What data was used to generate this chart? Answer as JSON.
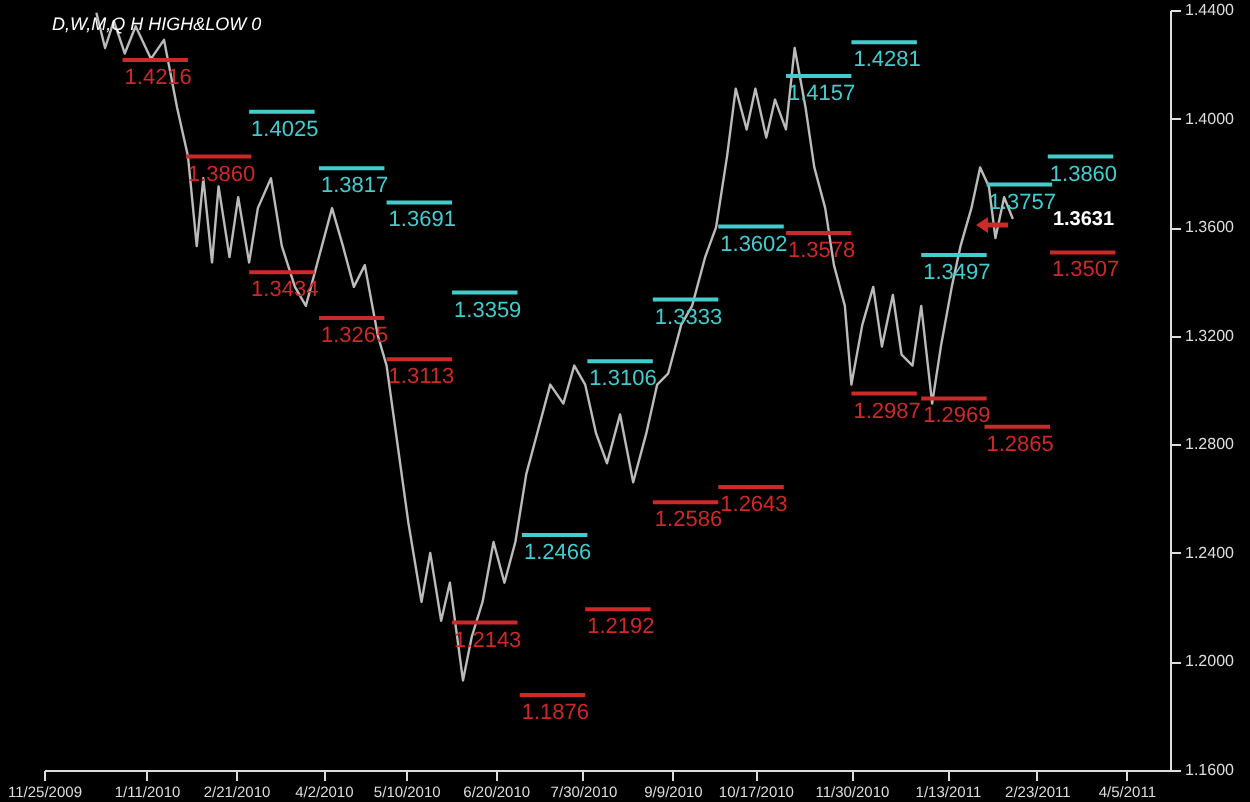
{
  "chart_data": {
    "type": "line",
    "title": "D,W,M,Q H HIGH&LOW 0",
    "xlim": [
      "2009-11-25",
      "2011-04-25"
    ],
    "xticks": [
      {
        "value": "2009-11-25",
        "label": "11/25/2009"
      },
      {
        "value": "2010-01-11",
        "label": "1/11/2010"
      },
      {
        "value": "2010-02-21",
        "label": "2/21/2010"
      },
      {
        "value": "2010-04-02",
        "label": "4/2/2010"
      },
      {
        "value": "2010-05-10",
        "label": "5/10/2010"
      },
      {
        "value": "2010-06-20",
        "label": "6/20/2010"
      },
      {
        "value": "2010-07-30",
        "label": "7/30/2010"
      },
      {
        "value": "2010-09-09",
        "label": "9/9/2010"
      },
      {
        "value": "2010-10-17",
        "label": "10/17/2010"
      },
      {
        "value": "2010-11-30",
        "label": "11/30/2010"
      },
      {
        "value": "2011-01-13",
        "label": "1/13/2011"
      },
      {
        "value": "2011-02-23",
        "label": "2/23/2011"
      },
      {
        "value": "2011-04-05",
        "label": "4/5/2011"
      }
    ],
    "ylim": [
      1.16,
      1.44
    ],
    "yticks": [
      {
        "value": 1.16,
        "label": "1.1600"
      },
      {
        "value": 1.2,
        "label": "1.2000"
      },
      {
        "value": 1.24,
        "label": "1.2400"
      },
      {
        "value": 1.28,
        "label": "1.2800"
      },
      {
        "value": 1.32,
        "label": "1.3200"
      },
      {
        "value": 1.36,
        "label": "1.3600"
      },
      {
        "value": 1.4,
        "label": "1.4000"
      },
      {
        "value": 1.44,
        "label": "1.4400"
      }
    ],
    "series": [
      {
        "color": "#bbbbbb",
        "x": [
          "2009-12-19",
          "2009-12-23",
          "2009-12-27",
          "2010-01-01",
          "2010-01-06",
          "2010-01-13",
          "2010-01-19",
          "2010-01-25",
          "2010-01-30",
          "2010-02-03",
          "2010-02-06",
          "2010-02-10",
          "2010-02-13",
          "2010-02-18",
          "2010-02-22",
          "2010-02-27",
          "2010-03-03",
          "2010-03-09",
          "2010-03-14",
          "2010-03-20",
          "2010-03-25",
          "2010-03-31",
          "2010-04-06",
          "2010-04-11",
          "2010-04-16",
          "2010-04-21",
          "2010-04-27",
          "2010-05-01",
          "2010-05-06",
          "2010-05-11",
          "2010-05-17",
          "2010-05-21",
          "2010-05-26",
          "2010-05-30",
          "2010-06-05",
          "2010-06-09",
          "2010-06-14",
          "2010-06-19",
          "2010-06-24",
          "2010-06-29",
          "2010-07-04",
          "2010-07-10",
          "2010-07-15",
          "2010-07-21",
          "2010-07-26",
          "2010-07-31",
          "2010-08-05",
          "2010-08-10",
          "2010-08-16",
          "2010-08-22",
          "2010-08-28",
          "2010-09-02",
          "2010-09-07",
          "2010-09-13",
          "2010-09-18",
          "2010-09-24",
          "2010-09-29",
          "2010-10-04",
          "2010-10-08",
          "2010-10-13",
          "2010-10-17",
          "2010-10-22",
          "2010-10-26",
          "2010-10-31",
          "2010-11-04",
          "2010-11-09",
          "2010-11-13",
          "2010-11-18",
          "2010-11-22",
          "2010-11-27",
          "2010-11-30",
          "2010-12-05",
          "2010-12-10",
          "2010-12-14",
          "2010-12-19",
          "2010-12-23",
          "2010-12-28",
          "2011-01-01",
          "2011-01-06",
          "2011-01-10",
          "2011-01-15",
          "2011-01-19",
          "2011-01-24",
          "2011-01-28",
          "2011-02-01",
          "2011-02-04",
          "2011-02-08",
          "2011-02-12"
        ],
        "values": [
          1.439,
          1.426,
          1.436,
          1.424,
          1.434,
          1.422,
          1.429,
          1.404,
          1.386,
          1.353,
          1.378,
          1.347,
          1.375,
          1.349,
          1.371,
          1.347,
          1.367,
          1.378,
          1.353,
          1.338,
          1.331,
          1.349,
          1.367,
          1.353,
          1.338,
          1.346,
          1.32,
          1.309,
          1.28,
          1.251,
          1.222,
          1.24,
          1.215,
          1.229,
          1.193,
          1.209,
          1.222,
          1.244,
          1.229,
          1.244,
          1.269,
          1.287,
          1.302,
          1.295,
          1.309,
          1.302,
          1.284,
          1.273,
          1.291,
          1.266,
          1.284,
          1.302,
          1.306,
          1.324,
          1.331,
          1.349,
          1.36,
          1.386,
          1.411,
          1.396,
          1.411,
          1.393,
          1.407,
          1.396,
          1.426,
          1.404,
          1.382,
          1.367,
          1.346,
          1.331,
          1.302,
          1.324,
          1.338,
          1.316,
          1.335,
          1.313,
          1.309,
          1.331,
          1.295,
          1.316,
          1.338,
          1.353,
          1.367,
          1.382,
          1.375,
          1.356,
          1.371,
          1.363
        ]
      },
      {
        "color": "#44cccc",
        "x": [
          "2010-02-27",
          "2010-03-29",
          null,
          "2010-03-31",
          "2010-04-30",
          null,
          "2010-05-01",
          "2010-05-31",
          null,
          "2010-05-31",
          "2010-06-30",
          null,
          "2010-07-02",
          "2010-08-01",
          null,
          "2010-08-01",
          "2010-08-31",
          null,
          "2010-08-31",
          "2010-09-30",
          null,
          "2010-09-30",
          "2010-10-30",
          null,
          "2010-10-31",
          "2010-11-30",
          null,
          "2010-11-30",
          "2010-12-30",
          null,
          "2011-01-01",
          "2011-01-31",
          null,
          "2011-01-31",
          "2011-03-02",
          null,
          "2011-02-28",
          "2011-03-30"
        ],
        "values": [
          1.4025,
          1.4025,
          null,
          1.3817,
          1.3817,
          null,
          1.3691,
          1.3691,
          null,
          1.3359,
          1.3359,
          null,
          1.2466,
          1.2466,
          null,
          1.3106,
          1.3106,
          null,
          1.3333,
          1.3333,
          null,
          1.3602,
          1.3602,
          null,
          1.4157,
          1.4157,
          null,
          1.4281,
          1.4281,
          null,
          1.3497,
          1.3497,
          null,
          1.3757,
          1.3757,
          null,
          1.386,
          1.386
        ],
        "value_labels": [
          "1.4025",
          null,
          null,
          "1.3817",
          null,
          null,
          "1.3691",
          null,
          null,
          "1.3359",
          null,
          null,
          "1.2466",
          null,
          null,
          "1.3106",
          null,
          null,
          "1.3333",
          null,
          null,
          "1.3602",
          null,
          null,
          "1.4157",
          null,
          null,
          "1.4281",
          null,
          null,
          "1.3497",
          null,
          null,
          "1.3757",
          null,
          null,
          "1.3860",
          null
        ]
      },
      {
        "color": "#cc2a2a",
        "x": [
          "2009-12-31",
          "2010-01-30",
          null,
          "2010-01-29",
          "2010-02-28",
          null,
          "2010-02-27",
          "2010-03-29",
          null,
          "2010-03-31",
          "2010-04-30",
          null,
          "2010-05-01",
          "2010-05-31",
          null,
          "2010-05-31",
          "2010-06-30",
          null,
          "2010-07-01",
          "2010-07-31",
          null,
          "2010-07-31",
          "2010-08-30",
          null,
          "2010-08-31",
          "2010-09-30",
          null,
          "2010-09-30",
          "2010-10-30",
          null,
          "2010-10-31",
          "2010-11-30",
          null,
          "2010-11-30",
          "2010-12-30",
          null,
          "2011-01-01",
          "2011-01-31",
          null,
          "2011-01-30",
          "2011-03-01",
          null,
          "2011-03-01",
          "2011-03-31"
        ],
        "values": [
          1.4216,
          1.4216,
          null,
          1.386,
          1.386,
          null,
          1.3434,
          1.3434,
          null,
          1.3265,
          1.3265,
          null,
          1.3113,
          1.3113,
          null,
          1.2143,
          1.2143,
          null,
          1.1876,
          1.1876,
          null,
          1.2192,
          1.2192,
          null,
          1.2586,
          1.2586,
          null,
          1.2643,
          1.2643,
          null,
          1.3578,
          1.3578,
          null,
          1.2987,
          1.2987,
          null,
          1.2969,
          1.2969,
          null,
          1.2865,
          1.2865,
          null,
          1.3507,
          1.3507
        ],
        "value_labels": [
          "1.4216",
          null,
          null,
          "1.3860",
          null,
          null,
          "1.3434",
          null,
          null,
          "1.3265",
          null,
          null,
          "1.3113",
          null,
          null,
          "1.2143",
          null,
          null,
          "1.1876",
          null,
          null,
          "1.2192",
          null,
          null,
          "1.2586",
          null,
          null,
          "1.2643",
          null,
          null,
          "1.3578",
          null,
          null,
          "1.2987",
          null,
          null,
          "1.2969",
          null,
          null,
          "1.2865",
          null,
          null,
          "1.3507",
          null
        ]
      }
    ],
    "annotations": [
      {
        "text": "1.3631",
        "x": "2011-02-12",
        "y": 1.3631
      }
    ]
  }
}
